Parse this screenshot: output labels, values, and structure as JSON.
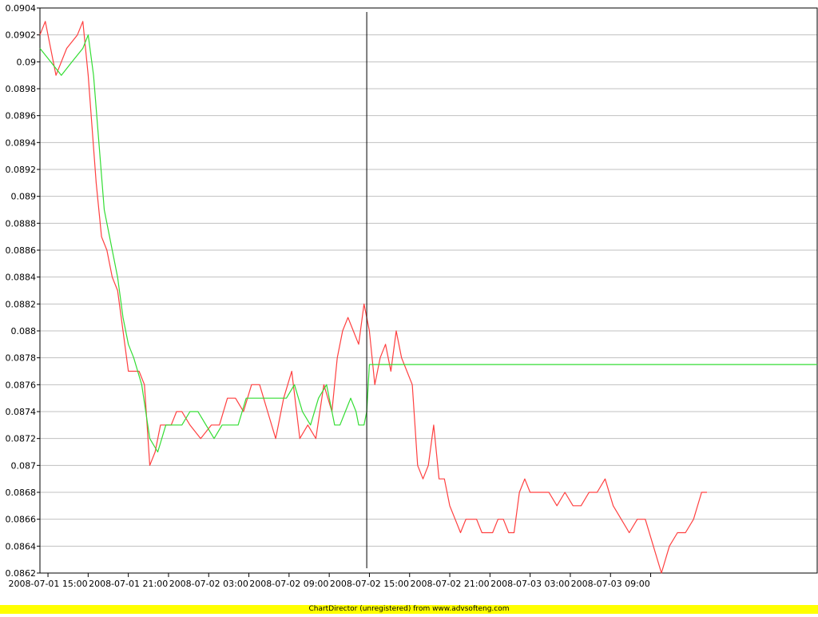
{
  "footer": {
    "text": "ChartDirector (unregistered) from www.advsofteng.com"
  },
  "colors": {
    "actual": "#ff4040",
    "forecast": "#33dd33",
    "cursor": "#000000",
    "grid": "#c0c0c0",
    "banner": "#ffff00"
  },
  "chart_data": {
    "type": "line",
    "title": "",
    "xlabel": "",
    "ylabel": "",
    "grid": true,
    "legend": "none",
    "x_range": [
      "2008-07-01 14:24",
      "2008-07-04 00:26"
    ],
    "ylim": [
      0.0862,
      0.0904
    ],
    "yticks": [
      0.0862,
      0.0864,
      0.0866,
      0.0868,
      0.087,
      0.0872,
      0.0874,
      0.0876,
      0.0878,
      0.088,
      0.0882,
      0.0884,
      0.0886,
      0.0888,
      0.089,
      0.0892,
      0.0894,
      0.0896,
      0.0898,
      0.09,
      0.0902,
      0.0904
    ],
    "ytick_labels": [
      "0.0862",
      "0.0864",
      "0.0866",
      "0.0868",
      "0.087",
      "0.0872",
      "0.0874",
      "0.0876",
      "0.0878",
      "0.088",
      "0.0882",
      "0.0884",
      "0.0886",
      "0.0888",
      "0.089",
      "0.0892",
      "0.0894",
      "0.0896",
      "0.0898",
      "0.09",
      "0.0902",
      "0.0904"
    ],
    "xticks": [
      "2008-07-01 15:00",
      "2008-07-01 18:00",
      "2008-07-01 21:00",
      "2008-07-02 00:00",
      "2008-07-02 03:00",
      "2008-07-02 06:00",
      "2008-07-02 09:00",
      "2008-07-02 12:00",
      "2008-07-02 15:00",
      "2008-07-02 18:00",
      "2008-07-02 21:00",
      "2008-07-03 00:00",
      "2008-07-03 03:00",
      "2008-07-03 06:00",
      "2008-07-03 09:00",
      "2008-07-03 12:00"
    ],
    "xtick_labels": [
      "2008-07-01 15:00",
      "",
      "2008-07-01 21:00",
      "",
      "2008-07-02 03:00",
      "",
      "2008-07-02 09:00",
      "",
      "2008-07-02 15:00",
      "",
      "2008-07-02 21:00",
      "",
      "2008-07-03 03:00",
      "",
      "2008-07-03 09:00",
      ""
    ],
    "cursor_x": "2008-07-02 14:48",
    "series": [
      {
        "key": "actual",
        "x": [
          "2008-07-01 14:24",
          "2008-07-01 14:48",
          "2008-07-01 15:36",
          "2008-07-01 16:24",
          "2008-07-01 17:12",
          "2008-07-01 17:36",
          "2008-07-01 18:00",
          "2008-07-01 18:36",
          "2008-07-01 19:00",
          "2008-07-01 19:24",
          "2008-07-01 19:48",
          "2008-07-01 20:12",
          "2008-07-01 20:36",
          "2008-07-01 21:00",
          "2008-07-01 21:24",
          "2008-07-01 21:48",
          "2008-07-01 22:12",
          "2008-07-01 22:36",
          "2008-07-01 23:00",
          "2008-07-01 23:24",
          "2008-07-01 23:48",
          "2008-07-02 00:12",
          "2008-07-02 00:36",
          "2008-07-02 01:00",
          "2008-07-02 01:36",
          "2008-07-02 02:24",
          "2008-07-02 03:12",
          "2008-07-02 03:48",
          "2008-07-02 04:24",
          "2008-07-02 05:00",
          "2008-07-02 05:36",
          "2008-07-02 06:12",
          "2008-07-02 06:48",
          "2008-07-02 07:24",
          "2008-07-02 08:00",
          "2008-07-02 08:36",
          "2008-07-02 09:12",
          "2008-07-02 09:48",
          "2008-07-02 10:24",
          "2008-07-02 11:00",
          "2008-07-02 11:36",
          "2008-07-02 12:12",
          "2008-07-02 12:36",
          "2008-07-02 13:00",
          "2008-07-02 13:24",
          "2008-07-02 13:48",
          "2008-07-02 14:12",
          "2008-07-02 14:36",
          "2008-07-02 15:00",
          "2008-07-02 15:24",
          "2008-07-02 15:48",
          "2008-07-02 16:12",
          "2008-07-02 16:36",
          "2008-07-02 17:00",
          "2008-07-02 17:24",
          "2008-07-02 17:48",
          "2008-07-02 18:12",
          "2008-07-02 18:36",
          "2008-07-02 19:00",
          "2008-07-02 19:24",
          "2008-07-02 19:48",
          "2008-07-02 20:12",
          "2008-07-02 20:36",
          "2008-07-02 21:00",
          "2008-07-02 21:24",
          "2008-07-02 21:48",
          "2008-07-02 22:12",
          "2008-07-02 22:36",
          "2008-07-02 23:00",
          "2008-07-02 23:24",
          "2008-07-02 23:48",
          "2008-07-03 00:12",
          "2008-07-03 00:36",
          "2008-07-03 01:00",
          "2008-07-03 01:24",
          "2008-07-03 01:48",
          "2008-07-03 02:12",
          "2008-07-03 02:36",
          "2008-07-03 03:00",
          "2008-07-03 03:24",
          "2008-07-03 03:48",
          "2008-07-03 04:24",
          "2008-07-03 05:00",
          "2008-07-03 05:36",
          "2008-07-03 06:12",
          "2008-07-03 06:48",
          "2008-07-03 07:24",
          "2008-07-03 08:00",
          "2008-07-03 08:36",
          "2008-07-03 09:12",
          "2008-07-03 09:48",
          "2008-07-03 10:24",
          "2008-07-03 11:00",
          "2008-07-03 11:36",
          "2008-07-03 12:12",
          "2008-07-03 12:48",
          "2008-07-03 13:24",
          "2008-07-03 14:00",
          "2008-07-03 14:36",
          "2008-07-03 15:12",
          "2008-07-03 15:48",
          "2008-07-03 16:12"
        ],
        "y": [
          0.0902,
          0.0903,
          0.0899,
          0.0901,
          0.0902,
          0.0903,
          0.0899,
          0.0891,
          0.0887,
          0.0886,
          0.0884,
          0.0883,
          0.088,
          0.0877,
          0.0877,
          0.0877,
          0.0876,
          0.087,
          0.0871,
          0.0873,
          0.0873,
          0.0873,
          0.0874,
          0.0874,
          0.0873,
          0.0872,
          0.0873,
          0.0873,
          0.0875,
          0.0875,
          0.0874,
          0.0876,
          0.0876,
          0.0874,
          0.0872,
          0.0875,
          0.0877,
          0.0872,
          0.0873,
          0.0872,
          0.0876,
          0.0874,
          0.0878,
          0.088,
          0.0881,
          0.088,
          0.0879,
          0.0882,
          0.088,
          0.0876,
          0.0878,
          0.0879,
          0.0877,
          0.088,
          0.0878,
          0.0877,
          0.0876,
          0.087,
          0.0869,
          0.087,
          0.0873,
          0.0869,
          0.0869,
          0.0867,
          0.0866,
          0.0865,
          0.0866,
          0.0866,
          0.0866,
          0.0865,
          0.0865,
          0.0865,
          0.0866,
          0.0866,
          0.0865,
          0.0865,
          0.0868,
          0.0869,
          0.0868,
          0.0868,
          0.0868,
          0.0868,
          0.0867,
          0.0868,
          0.0867,
          0.0867,
          0.0868,
          0.0868,
          0.0869,
          0.0867,
          0.0866,
          0.0865,
          0.0866,
          0.0866,
          0.0864,
          0.0862,
          0.0864,
          0.0865,
          0.0865,
          0.0866,
          0.0868,
          0.0868
        ]
      },
      {
        "key": "forecast",
        "x": [
          "2008-07-01 14:24",
          "2008-07-01 15:12",
          "2008-07-01 16:00",
          "2008-07-01 16:48",
          "2008-07-01 17:36",
          "2008-07-01 18:00",
          "2008-07-01 18:24",
          "2008-07-01 18:48",
          "2008-07-01 19:12",
          "2008-07-01 19:48",
          "2008-07-01 20:12",
          "2008-07-01 20:36",
          "2008-07-01 21:00",
          "2008-07-01 21:24",
          "2008-07-01 22:00",
          "2008-07-01 22:36",
          "2008-07-01 23:12",
          "2008-07-01 23:48",
          "2008-07-02 00:24",
          "2008-07-02 01:00",
          "2008-07-02 01:36",
          "2008-07-02 02:12",
          "2008-07-02 02:48",
          "2008-07-02 03:24",
          "2008-07-02 04:00",
          "2008-07-02 04:36",
          "2008-07-02 05:12",
          "2008-07-02 05:48",
          "2008-07-02 06:24",
          "2008-07-02 07:00",
          "2008-07-02 07:36",
          "2008-07-02 08:12",
          "2008-07-02 08:48",
          "2008-07-02 09:24",
          "2008-07-02 10:00",
          "2008-07-02 10:36",
          "2008-07-02 11:12",
          "2008-07-02 11:48",
          "2008-07-02 12:24",
          "2008-07-02 12:48",
          "2008-07-02 13:12",
          "2008-07-02 13:36",
          "2008-07-02 14:00",
          "2008-07-02 14:12",
          "2008-07-02 14:36",
          "2008-07-02 14:48",
          "2008-07-02 15:00",
          "2008-07-04 00:26"
        ],
        "y": [
          0.0901,
          0.09,
          0.0899,
          0.09,
          0.0901,
          0.0902,
          0.0899,
          0.0894,
          0.0889,
          0.0886,
          0.0884,
          0.0881,
          0.0879,
          0.0878,
          0.0876,
          0.0872,
          0.0871,
          0.0873,
          0.0873,
          0.0873,
          0.0874,
          0.0874,
          0.0873,
          0.0872,
          0.0873,
          0.0873,
          0.0873,
          0.0875,
          0.0875,
          0.0875,
          0.0875,
          0.0875,
          0.0875,
          0.0876,
          0.0874,
          0.0873,
          0.0875,
          0.0876,
          0.0873,
          0.0873,
          0.0874,
          0.0875,
          0.0874,
          0.0873,
          0.0873,
          0.0874,
          0.08775,
          0.08775
        ]
      }
    ]
  }
}
